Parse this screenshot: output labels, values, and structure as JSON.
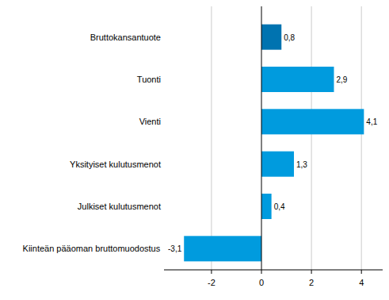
{
  "chart_data": {
    "type": "bar",
    "orientation": "horizontal",
    "categories": [
      "Bruttokansantuote",
      "Tuonti",
      "Vienti",
      "Yksityiset kulutusmenot",
      "Julkiset kulutusmenot",
      "Kiinteän pääoman bruttomuodostus"
    ],
    "values": [
      0.8,
      2.9,
      4.1,
      1.3,
      0.4,
      -3.1
    ],
    "value_labels": [
      "0,8",
      "2,9",
      "4,1",
      "1,3",
      "0,4",
      "-3,1"
    ],
    "colors": [
      "#0073b0",
      "#009bde",
      "#009bde",
      "#009bde",
      "#009bde",
      "#009bde"
    ],
    "xlim": [
      -3.9,
      4.85
    ],
    "xticks": [
      -2,
      0,
      2,
      4
    ],
    "grid": true,
    "data_labels": true
  }
}
